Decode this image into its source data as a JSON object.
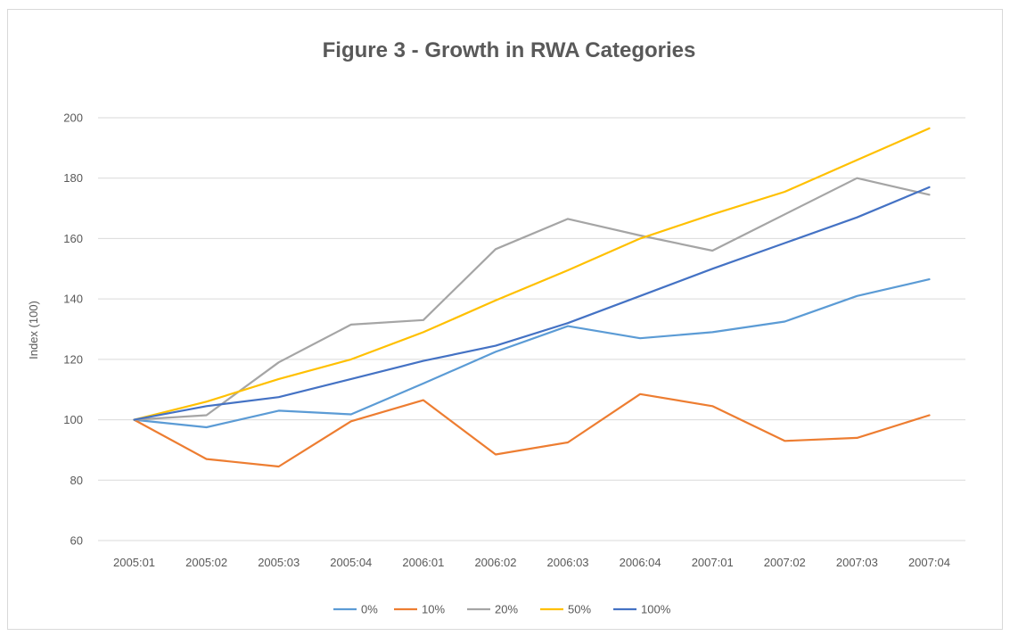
{
  "chart_data": {
    "type": "line",
    "title": "Figure 3 - Growth in RWA Categories",
    "xlabel": "",
    "ylabel": "Index (100)",
    "ylim": [
      60,
      200
    ],
    "yticks": [
      60,
      80,
      100,
      120,
      140,
      160,
      180,
      200
    ],
    "grid": true,
    "legend_position": "bottom",
    "categories": [
      "2005:01",
      "2005:02",
      "2005:03",
      "2005:04",
      "2006:01",
      "2006:02",
      "2006:03",
      "2006:04",
      "2007:01",
      "2007:02",
      "2007:03",
      "2007:04"
    ],
    "series": [
      {
        "name": "0%",
        "color": "#5b9bd5",
        "values": [
          100,
          97.5,
          103,
          101.8,
          112,
          122.5,
          131,
          127,
          129,
          132.5,
          141,
          146.5
        ]
      },
      {
        "name": "10%",
        "color": "#ed7d31",
        "values": [
          100,
          87,
          84.5,
          99.5,
          106.5,
          88.5,
          92.5,
          108.5,
          104.5,
          93,
          94,
          101.5
        ]
      },
      {
        "name": "20%",
        "color": "#a5a5a5",
        "values": [
          100,
          101.5,
          119,
          131.5,
          133,
          156.5,
          166.5,
          161,
          156,
          168,
          180,
          174.5
        ]
      },
      {
        "name": "50%",
        "color": "#ffc000",
        "values": [
          100,
          106,
          113.5,
          120,
          129,
          139.5,
          149.5,
          160,
          168,
          175.5,
          186,
          196.5
        ]
      },
      {
        "name": "100%",
        "color": "#4472c4",
        "values": [
          100,
          104.5,
          107.5,
          113.5,
          119.5,
          124.5,
          132,
          141,
          150,
          158.5,
          167,
          177
        ]
      }
    ]
  }
}
